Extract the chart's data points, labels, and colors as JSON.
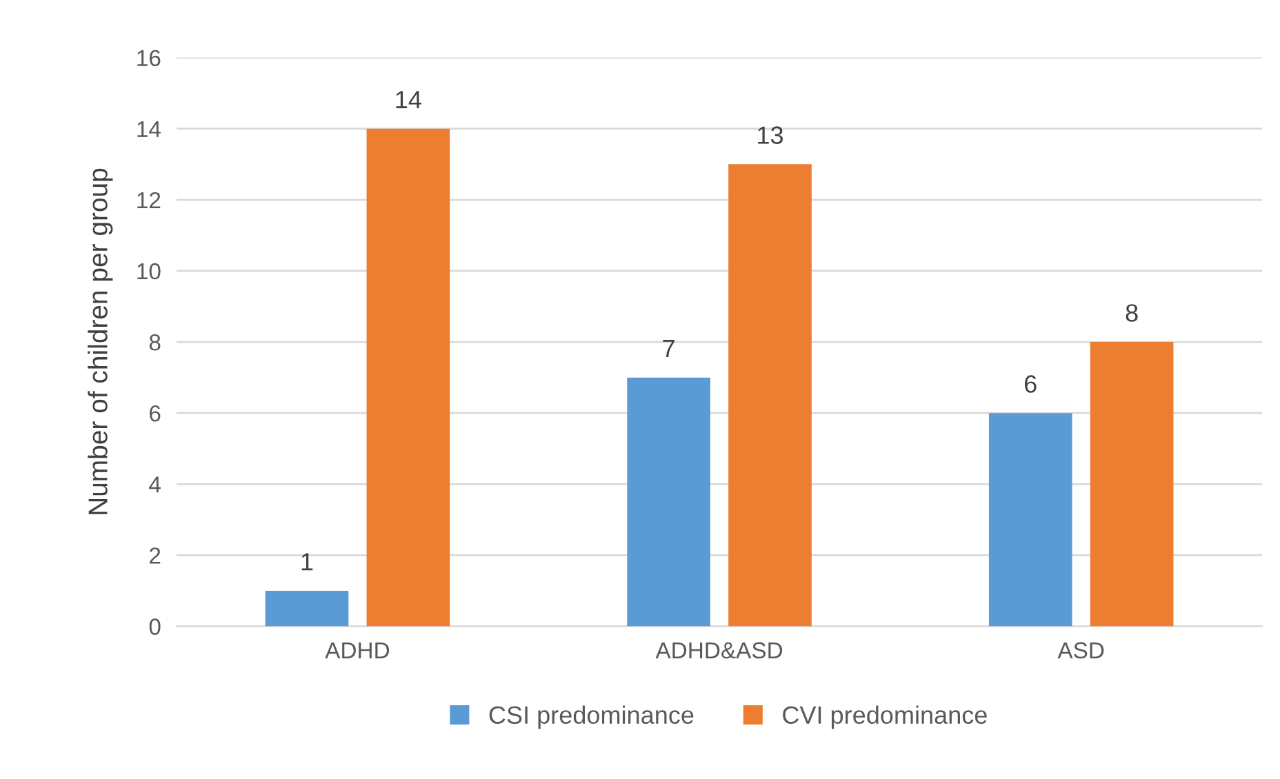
{
  "chart_data": {
    "type": "bar",
    "ylabel": "Number of children per group",
    "categories": [
      "ADHD",
      "ADHD&ASD",
      "ASD"
    ],
    "series": [
      {
        "name": "CSI predominance",
        "color": "#5b9bd5",
        "values": [
          1,
          7,
          6
        ]
      },
      {
        "name": "CVI predominance",
        "color": "#ed7d31",
        "values": [
          14,
          13,
          8
        ]
      }
    ],
    "ylim": [
      0,
      16
    ],
    "yticks": [
      0,
      2,
      4,
      6,
      8,
      10,
      12,
      14,
      16
    ],
    "grid": "y",
    "legend": "bottom",
    "data_labels": true
  }
}
